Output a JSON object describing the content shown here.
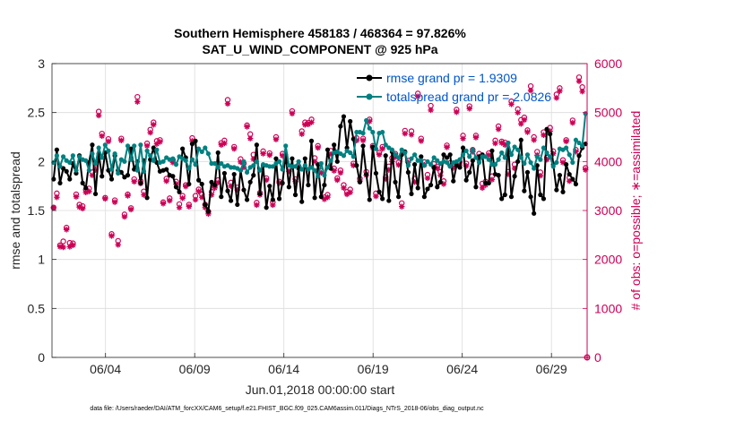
{
  "chart_data": {
    "type": "line",
    "title_line1": "Southern Hemisphere 458183 / 468364 = 97.826%",
    "title_line2": "SAT_U_WIND_COMPONENT @ 925 hPa",
    "xlabel": "Jun.01,2018 00:00:00 start",
    "ylabel_left": "rmse and totalspread",
    "ylabel_right": "# of obs: o=possible; ∗=assimilated",
    "footer": "data file: /Users/raeder/DAI/ATM_forcXX/CAM6_setup/f.e21.FHIST_BGC.f09_025.CAM6assim.011/Diags_NTrS_2018-06/obs_diag_output.nc",
    "xlim": [
      1.0,
      31.0
    ],
    "ylim_left": [
      0,
      3
    ],
    "ylim_right": [
      0,
      6000
    ],
    "grid": true,
    "legend_position": "top-right",
    "x_ticks": [
      {
        "value": 4.0,
        "label": "06/04"
      },
      {
        "value": 9.0,
        "label": "06/09"
      },
      {
        "value": 14.0,
        "label": "06/14"
      },
      {
        "value": 19.0,
        "label": "06/19"
      },
      {
        "value": 24.0,
        "label": "06/24"
      },
      {
        "value": 29.0,
        "label": "06/29"
      }
    ],
    "y_left_ticks": [
      "0",
      "0.5",
      "1",
      "1.5",
      "2",
      "2.5",
      "3"
    ],
    "y_right_ticks": [
      "0",
      "1000",
      "2000",
      "3000",
      "4000",
      "5000",
      "6000"
    ],
    "colors": {
      "rmse": "#000000",
      "spread": "#008080",
      "obs": "#cc0055",
      "legend_text": "#0055cc",
      "grid": "#dcdcdc",
      "axis": "#262626"
    },
    "series": [
      {
        "name": "rmse grand pr = 1.9309",
        "axis": "left",
        "color": "#000000",
        "values": [
          1.82,
          2.12,
          1.78,
          1.93,
          1.9,
          1.82,
          1.98,
          1.88,
          2.06,
          1.78,
          1.73,
          1.99,
          2.17,
          1.67,
          2.08,
          1.85,
          2.09,
          1.91,
          1.82,
          2.06,
          1.91,
          1.89,
          1.84,
          1.86,
          2.13,
          1.92,
          2.0,
          1.78,
          2.01,
          1.63,
          2.02,
          2.14,
          1.99,
          1.9,
          1.91,
          1.92,
          1.86,
          1.85,
          1.74,
          1.69,
          2.13,
          2.04,
          1.77,
          2.18,
          2.21,
          1.81,
          1.77,
          1.56,
          1.49,
          1.79,
          1.76,
          2.09,
          1.64,
          1.88,
          1.7,
          1.6,
          1.87,
          1.56,
          1.91,
          1.71,
          1.61,
          1.79,
          1.86,
          2.17,
          1.67,
          1.96,
          1.53,
          1.75,
          1.61,
          2.03,
          1.62,
          1.78,
          2.07,
          1.74,
          2.03,
          1.66,
          1.94,
          1.59,
          2.03,
          1.76,
          2.21,
          1.63,
          1.97,
          1.64,
          1.76,
          2.12,
          1.93,
          2.17,
          2.0,
          2.36,
          2.46,
          2.14,
          2.41,
          2.23,
          1.96,
          1.79,
          2.16,
          1.87,
          1.61,
          2.15,
          1.88,
          1.69,
          1.62,
          2.06,
          1.6,
          2.1,
          1.79,
          1.64,
          2.07,
          2.1,
          1.89,
          1.67,
          1.97,
          1.73,
          2.05,
          1.64,
          1.72,
          1.76,
          1.94,
          1.74,
          1.79,
          2.07,
          2.04,
          2.07,
          1.8,
          1.96,
          1.94,
          2.14,
          1.81,
          1.89,
          2.01,
          1.74,
          2.05,
          2.07,
          1.78,
          1.78,
          2.11,
          1.87,
          1.86,
          1.62,
          1.66,
          2.19,
          1.64,
          1.85,
          2.0,
          2.22,
          1.7,
          1.89,
          1.64,
          1.47,
          1.96,
          1.66,
          1.62,
          2.33,
          2.28,
          1.97,
          1.71,
          1.86,
          1.69,
          1.97,
          1.87,
          1.82,
          1.77,
          2.06,
          2.14,
          2.18
        ]
      },
      {
        "name": "totalspread grand pr = 2.0826",
        "axis": "left",
        "color": "#008080",
        "values": [
          1.99,
          2.06,
          1.95,
          2.05,
          2.01,
          1.99,
          2.06,
          1.91,
          2.05,
          2.02,
          2.01,
          1.91,
          2.08,
          1.98,
          2.14,
          2.04,
          2.17,
          2.11,
          1.92,
          2.08,
          1.88,
          2.02,
          2.0,
          2.16,
          2.02,
          2.16,
          1.91,
          2.17,
          1.9,
          2.11,
          2.06,
          2.01,
          2.12,
          1.99,
          2.0,
          2.04,
          2.02,
          2.03,
          1.97,
          2.05,
          2.03,
          2.01,
          1.93,
          2.02,
          1.97,
          2.13,
          2.1,
          2.14,
          2.08,
          1.98,
          1.98,
          1.94,
          1.98,
          1.95,
          1.96,
          1.94,
          1.94,
          1.93,
          1.91,
          2.0,
          1.89,
          1.94,
          1.96,
          2.0,
          1.91,
          1.97,
          1.96,
          1.95,
          1.95,
          1.98,
          2.0,
          1.92,
          2.16,
          1.96,
          1.95,
          1.95,
          2.0,
          1.92,
          1.96,
          1.92,
          1.94,
          1.91,
          1.85,
          1.98,
          1.86,
          1.94,
          2.01,
          2.09,
          2.1,
          2.08,
          2.06,
          2.11,
          2.09,
          2.05,
          2.3,
          2.3,
          2.29,
          2.42,
          2.34,
          2.3,
          2.13,
          2.29,
          2.3,
          2.17,
          2.14,
          2.12,
          2.07,
          2.04,
          2.12,
          2.09,
          1.96,
          2.03,
          2.07,
          2.01,
          2.01,
          1.96,
          2.0,
          1.97,
          2.04,
          2.01,
          1.98,
          2.0,
          1.99,
          1.95,
          1.99,
          2.0,
          2.02,
          2.07,
          2.11,
          2.05,
          2.12,
          2.04,
          1.99,
          2.05,
          2.05,
          2.02,
          1.97,
          1.97,
          2.02,
          2.09,
          2.04,
          2.19,
          2.07,
          2.15,
          2.12,
          2.04,
          1.98,
          2.07,
          1.99,
          1.93,
          2.05,
          2.02,
          2.14,
          2.09,
          2.05,
          1.95,
          1.99,
          2.13,
          2.12,
          2.14,
          2.07,
          1.99,
          2.22,
          2.19,
          2.16,
          2.49
        ]
      },
      {
        "name": "possible",
        "axis": "right",
        "marker": "o",
        "color": "#cc0055",
        "values": [
          3060,
          3350,
          2290,
          2370,
          2650,
          2340,
          2330,
          3330,
          3120,
          3090,
          3420,
          3450,
          3780,
          3850,
          5020,
          4570,
          3260,
          4460,
          2520,
          3210,
          2380,
          4470,
          2920,
          3330,
          3050,
          3640,
          5320,
          3600,
          3390,
          4370,
          4650,
          4800,
          4420,
          4440,
          3170,
          3650,
          3250,
          4030,
          3590,
          3130,
          3300,
          3520,
          3120,
          4480,
          3300,
          3430,
          3330,
          3120,
          2980,
          3380,
          3500,
          3620,
          4380,
          4430,
          5260,
          3570,
          4300,
          3470,
          4050,
          3960,
          4740,
          4560,
          4140,
          3160,
          3360,
          4210,
          3660,
          4170,
          3170,
          4500,
          3590,
          4160,
          4050,
          3850,
          5030,
          3640,
          3900,
          4620,
          4800,
          4790,
          4860,
          4070,
          4320,
          3810,
          3270,
          3320,
          4220,
          3860,
          3660,
          3820,
          3520,
          3380,
          3430,
          3960,
          4480,
          3650,
          4470,
          3790,
          4860,
          4320,
          3350,
          4180,
          4300,
          3680,
          3900,
          4070,
          4160,
          3980,
          3150,
          4630,
          4020,
          4620,
          3650,
          5390,
          4470,
          3990,
          3730,
          5140,
          3950,
          3900,
          3790,
          3600,
          4330,
          3970,
          3950,
          5060,
          3990,
          4530,
          3960,
          5130,
          4240,
          4530,
          4160,
          3550,
          3590,
          4170,
          3700,
          4430,
          4720,
          4410,
          4390,
          3790,
          5230,
          3940,
          5070,
          4850,
          4900,
          4640,
          5540,
          4500,
          4200,
          3780,
          4600,
          4080,
          4690,
          4210,
          5370,
          5500,
          4030,
          4440,
          3670,
          4840,
          4240,
          5720,
          5520,
          3870
        ]
      },
      {
        "name": "assimilated",
        "axis": "right",
        "marker": "*",
        "color": "#cc0055",
        "values": [
          3060,
          3270,
          2260,
          2250,
          2610,
          2260,
          2290,
          3280,
          3070,
          3040,
          3370,
          3390,
          3720,
          3830,
          4940,
          4520,
          3240,
          4410,
          2480,
          3170,
          2300,
          4430,
          2870,
          3300,
          3020,
          3590,
          5220,
          3550,
          3320,
          4320,
          4590,
          4750,
          4360,
          4400,
          3140,
          3600,
          3200,
          3980,
          3540,
          3060,
          3250,
          3490,
          3080,
          4420,
          3220,
          3390,
          3270,
          3060,
          2930,
          3320,
          3460,
          3570,
          4340,
          4370,
          5180,
          3500,
          4260,
          3420,
          3990,
          3880,
          4710,
          4470,
          4050,
          3110,
          3320,
          4160,
          3620,
          4130,
          3110,
          4450,
          3560,
          4120,
          4010,
          3800,
          4980,
          3590,
          3870,
          4560,
          4750,
          4760,
          4800,
          4000,
          4280,
          3770,
          3230,
          3270,
          4150,
          3810,
          3620,
          3770,
          3460,
          3330,
          3370,
          3920,
          4430,
          3600,
          4430,
          3720,
          4820,
          4280,
          3290,
          4140,
          4260,
          3640,
          3830,
          4000,
          4090,
          3930,
          3080,
          4570,
          3980,
          4550,
          3580,
          5330,
          4420,
          3930,
          3660,
          5050,
          3880,
          3860,
          3720,
          3540,
          4290,
          3920,
          3870,
          5010,
          3930,
          4470,
          3910,
          5080,
          4200,
          4490,
          4100,
          3460,
          3520,
          4130,
          3630,
          4370,
          4660,
          4380,
          4340,
          3740,
          5170,
          3860,
          5000,
          4770,
          4850,
          4600,
          5450,
          4440,
          4130,
          3710,
          4540,
          4040,
          4620,
          4160,
          5300,
          5440,
          3980,
          4410,
          3600,
          4790,
          4200,
          5640,
          5430,
          3830
        ]
      }
    ],
    "trailing_obs_point": {
      "x": 31.0,
      "value": 0
    }
  }
}
